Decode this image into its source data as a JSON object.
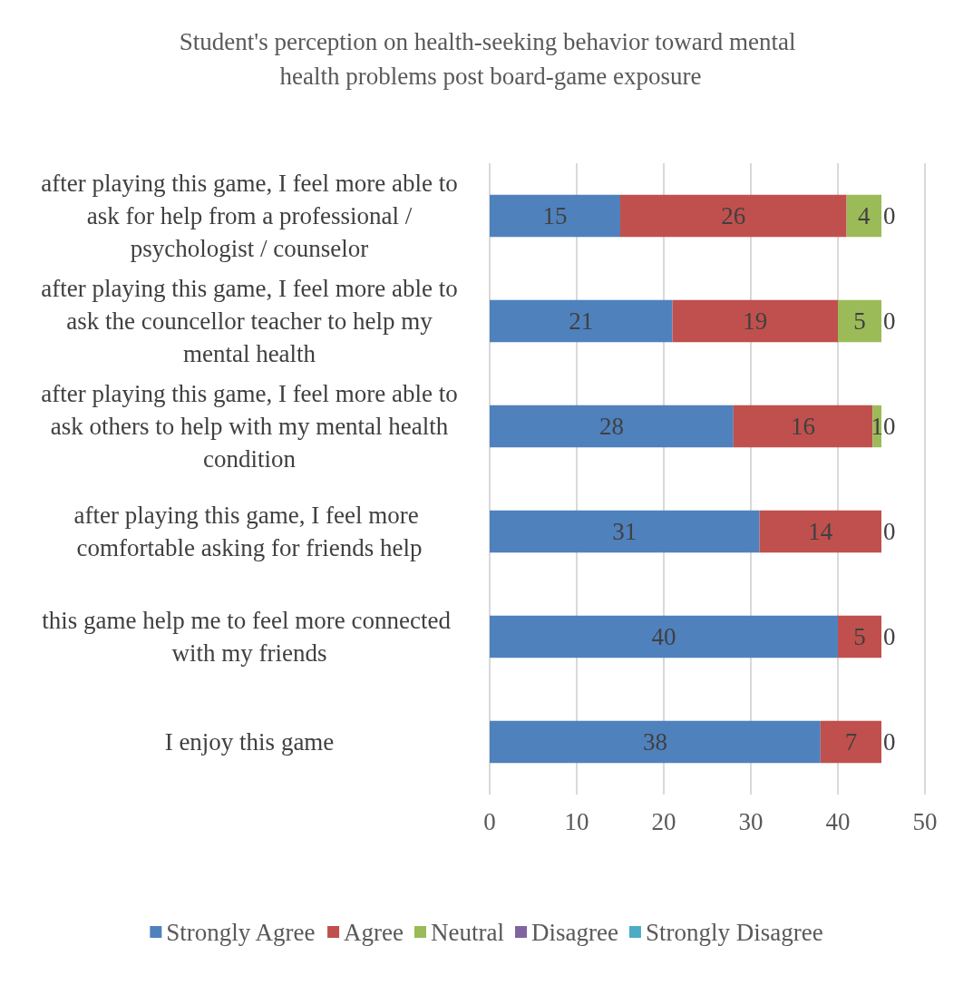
{
  "chart_data": {
    "type": "bar",
    "orientation": "horizontal",
    "stacked": true,
    "title": "Student's perception on health-seeking behavior toward mental health problems post board-game exposure",
    "categories": [
      "after playing this game, I feel more able to ask for help from a professional / psychologist / counselor",
      "after playing this game, I feel more able to ask the councellor teacher to help my mental health",
      "after playing this game, I feel more able to ask others to help with my mental health condition",
      "after playing this game, I feel more comfortable asking for friends help",
      "this game help me to feel more connected with my friends",
      "I enjoy this game"
    ],
    "series": [
      {
        "name": "Strongly Agree",
        "color": "#4f81bd",
        "values": [
          15,
          21,
          28,
          31,
          40,
          38
        ],
        "value_labels": [
          "15",
          "21",
          "28",
          "31",
          "40",
          "38"
        ]
      },
      {
        "name": "Agree",
        "color": "#c0504d",
        "values": [
          26,
          19,
          16,
          14,
          5,
          7
        ],
        "value_labels": [
          "26",
          "19",
          "16",
          "14",
          "5",
          "7"
        ]
      },
      {
        "name": "Neutral",
        "color": "#9bbb59",
        "values": [
          4,
          5,
          1,
          0,
          0,
          0
        ],
        "value_labels": [
          "4",
          "5",
          "1",
          null,
          null,
          null
        ]
      },
      {
        "name": "Disagree",
        "color": "#8064a2",
        "values": [
          0,
          0,
          0,
          0,
          0,
          0
        ],
        "value_labels": [
          "0",
          "0",
          "0",
          "0",
          "0",
          "0"
        ]
      },
      {
        "name": "Strongly Disagree",
        "color": "#4bacc6",
        "values": [
          0,
          0,
          0,
          0,
          0,
          0
        ],
        "value_labels": [
          null,
          null,
          null,
          null,
          null,
          null
        ]
      }
    ],
    "xlim": [
      0,
      50
    ],
    "xticks": [
      0,
      10,
      20,
      30,
      40,
      50
    ],
    "grid": "x",
    "legend": "bottom"
  }
}
